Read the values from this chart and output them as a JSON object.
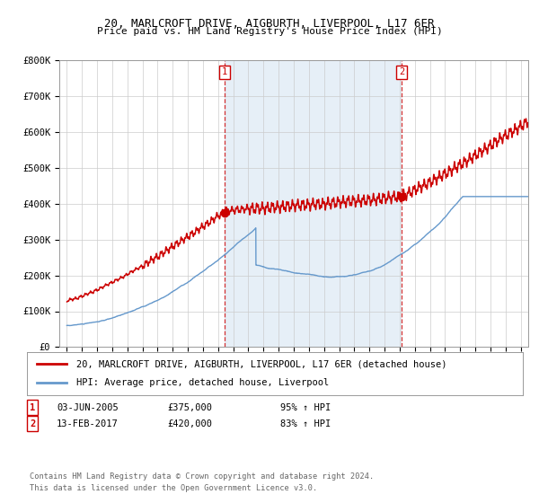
{
  "title": "20, MARLCROFT DRIVE, AIGBURTH, LIVERPOOL, L17 6ER",
  "subtitle": "Price paid vs. HM Land Registry's House Price Index (HPI)",
  "ylim": [
    0,
    800000
  ],
  "xlim_start": 1994.5,
  "xlim_end": 2025.5,
  "sale1_year": 2005.42,
  "sale1_price": 375000,
  "sale2_year": 2017.12,
  "sale2_price": 420000,
  "legend_line1": "20, MARLCROFT DRIVE, AIGBURTH, LIVERPOOL, L17 6ER (detached house)",
  "legend_line2": "HPI: Average price, detached house, Liverpool",
  "footnote1": "Contains HM Land Registry data © Crown copyright and database right 2024.",
  "footnote2": "This data is licensed under the Open Government Licence v3.0.",
  "annot1_num": "1",
  "annot1_date": "03-JUN-2005",
  "annot1_price": "£375,000",
  "annot1_hpi": "95% ↑ HPI",
  "annot2_num": "2",
  "annot2_date": "13-FEB-2017",
  "annot2_price": "£420,000",
  "annot2_hpi": "83% ↑ HPI",
  "red_color": "#cc0000",
  "blue_color": "#6699cc",
  "blue_fill": "#dce9f5",
  "grid_color": "#cccccc",
  "ytick_labels": [
    "£0",
    "£100K",
    "£200K",
    "£300K",
    "£400K",
    "£500K",
    "£600K",
    "£700K",
    "£800K"
  ],
  "ytick_values": [
    0,
    100000,
    200000,
    300000,
    400000,
    500000,
    600000,
    700000,
    800000
  ]
}
